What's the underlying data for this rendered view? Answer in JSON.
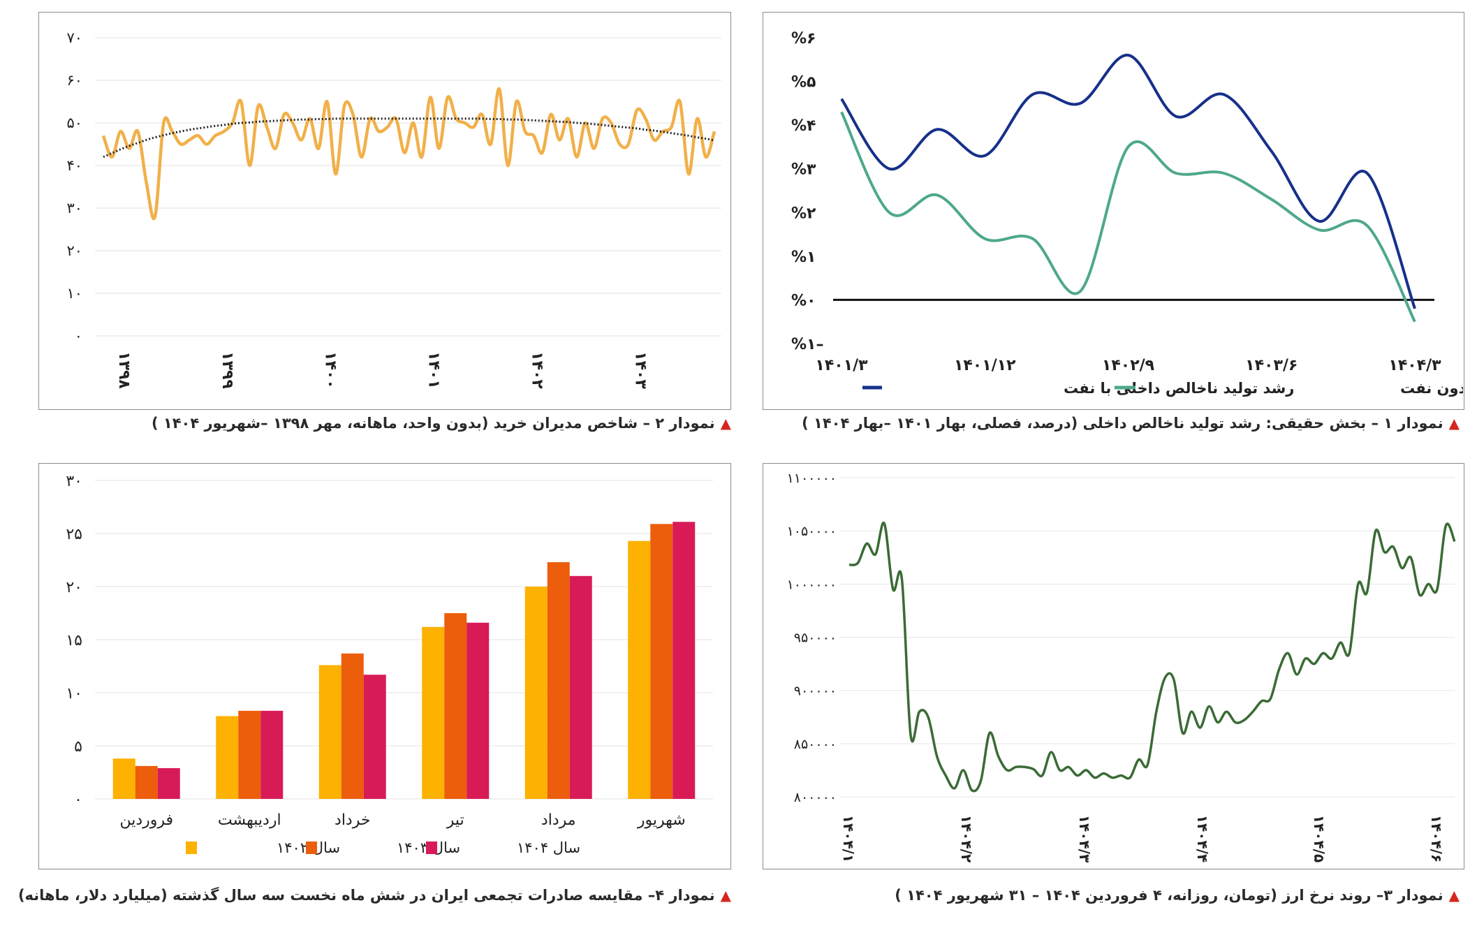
{
  "colors": {
    "red_marker": "#d7261e",
    "c1_oil": "#16308a",
    "c1_nonoil": "#4ea88c",
    "c2_line": "#f1b04a",
    "c2_trend": "#222222",
    "c3_line": "#3a6b35",
    "c4_1402": "#fdb100",
    "c4_1403": "#ec5e0b",
    "c4_1404": "#d81b57"
  },
  "captions": {
    "chart1": "نمودار ۱ – بخش حقیقی: رشد تولید ناخالص داخلی (درصد، فصلی، بهار ۱۴۰۱ –بهار ۱۴۰۴ )",
    "chart2": "نمودار ۲ – شاخص مدیران خرید (بدون واحد، ماهانه، مهر ۱۳۹۸ –شهریور ۱۴۰۴ )",
    "chart3": "نمودار ۳– روند نرخ ارز (تومان، روزانه، ۴ فروردین ۱۴۰۴ – ۳۱ شهریور ۱۴۰۴ )",
    "chart4": "نمودار ۴– مقایسه صادرات تجمعی ایران در شش ماه نخست سه سال گذشته (میلیارد دلار، ماهانه)"
  },
  "chart_data": [
    {
      "id": "chart1",
      "type": "line",
      "ylim": [
        -1,
        6
      ],
      "y_ticks": [
        "%۶",
        "%۵",
        "%۴",
        "%۳",
        "%۲",
        "%۱",
        "%۰",
        "%۱–"
      ],
      "x_tick_labels": [
        "۱۴۰۱/۳",
        "۱۴۰۱/۱۲",
        "۱۴۰۲/۹",
        "۱۴۰۳/۶",
        "۱۴۰۴/۳"
      ],
      "x": [
        "1401/3",
        "1401/6",
        "1401/9",
        "1401/12",
        "1402/3",
        "1402/6",
        "1402/9",
        "1402/12",
        "1403/3",
        "1403/6",
        "1403/9",
        "1403/12",
        "1404/3"
      ],
      "series": [
        {
          "name": "رشد تولید ناخالص داخلی با نفت",
          "values": [
            4.6,
            3.0,
            3.9,
            3.3,
            4.7,
            4.5,
            5.6,
            4.2,
            4.7,
            3.4,
            1.8,
            2.9,
            -0.2
          ]
        },
        {
          "name": "رشد تولید ناخالص داخلی بدون نفت",
          "values": [
            4.3,
            2.0,
            2.4,
            1.4,
            1.4,
            0.2,
            3.5,
            2.9,
            2.9,
            2.3,
            1.6,
            1.7,
            -0.5
          ]
        }
      ],
      "zero_line": true
    },
    {
      "id": "chart2",
      "type": "line",
      "ylim": [
        0,
        70
      ],
      "y_ticks": [
        "۷۰",
        "۶۰",
        "۵۰",
        "۴۰",
        "۳۰",
        "۲۰",
        "۱۰",
        "۰"
      ],
      "x_tick_labels": [
        "۱۳۹۸",
        "۱۳۹۹",
        "۱۴۰۰",
        "۱۴۰۱",
        "۱۴۰۲",
        "۱۴۰۳",
        "۱۴۰۴"
      ],
      "x": [
        "1398/7",
        "1398/8",
        "1398/9",
        "1398/10",
        "1398/11",
        "1398/12",
        "1399/1",
        "1399/2",
        "1399/3",
        "1399/4",
        "1399/5",
        "1399/6",
        "1399/7",
        "1399/8",
        "1399/9",
        "1399/10",
        "1399/11",
        "1399/12",
        "1400/1",
        "1400/2",
        "1400/3",
        "1400/4",
        "1400/5",
        "1400/6",
        "1400/7",
        "1400/8",
        "1400/9",
        "1400/10",
        "1400/11",
        "1400/12",
        "1401/1",
        "1401/2",
        "1401/3",
        "1401/4",
        "1401/5",
        "1401/6",
        "1401/7",
        "1401/8",
        "1401/9",
        "1401/10",
        "1401/11",
        "1401/12",
        "1402/1",
        "1402/2",
        "1402/3",
        "1402/4",
        "1402/5",
        "1402/6",
        "1402/7",
        "1402/8",
        "1402/9",
        "1402/10",
        "1402/11",
        "1402/12",
        "1403/1",
        "1403/2",
        "1403/3",
        "1403/4",
        "1403/5",
        "1403/6",
        "1403/7",
        "1403/8",
        "1403/9",
        "1403/10",
        "1403/11",
        "1403/12",
        "1404/1",
        "1404/2",
        "1404/3",
        "1404/4",
        "1404/5",
        "1404/6"
      ],
      "series": [
        {
          "name": "",
          "values": [
            47,
            42,
            48,
            44,
            48,
            36,
            28,
            50,
            48,
            45,
            46,
            47,
            45,
            47,
            48,
            50,
            55,
            40,
            54,
            49,
            44,
            52,
            50,
            46,
            51,
            44,
            55,
            38,
            54,
            52,
            42,
            51,
            48,
            49,
            51,
            43,
            50,
            42,
            56,
            44,
            56,
            51,
            50,
            49,
            52,
            45,
            58,
            40,
            55,
            48,
            47,
            43,
            52,
            46,
            51,
            42,
            50,
            44,
            51,
            50,
            45,
            45,
            53,
            51,
            46,
            48,
            49,
            55,
            38,
            51,
            42,
            48
          ]
        },
        {
          "name": "",
          "values": [
            42,
            42.9,
            43.8,
            44.6,
            45.3,
            46,
            46.6,
            47.1,
            47.6,
            48,
            48.4,
            48.7,
            49,
            49.3,
            49.5,
            49.8,
            50,
            50.1,
            50.3,
            50.4,
            50.5,
            50.6,
            50.7,
            50.8,
            50.8,
            50.9,
            50.9,
            51,
            51,
            51,
            51,
            51,
            51,
            51,
            51,
            51,
            51,
            51,
            51,
            51,
            51,
            51,
            51,
            51,
            51,
            50.9,
            50.9,
            50.8,
            50.8,
            50.7,
            50.6,
            50.5,
            50.4,
            50.3,
            50.2,
            50,
            49.9,
            49.7,
            49.5,
            49.3,
            49.1,
            48.9,
            48.7,
            48.4,
            48.2,
            47.9,
            47.6,
            47.3,
            47,
            46.6,
            46.3,
            45.9
          ]
        }
      ],
      "trendline": "dotted"
    },
    {
      "id": "chart3",
      "type": "line",
      "ylim": [
        800000,
        1100000
      ],
      "y_ticks": [
        "۱۱۰۰۰۰۰",
        "۱۰۵۰۰۰۰",
        "۱۰۰۰۰۰۰",
        "۹۵۰۰۰۰",
        "۹۰۰۰۰۰",
        "۸۵۰۰۰۰",
        "۸۰۰۰۰۰"
      ],
      "x_tick_labels": [
        "۱۴۰۴/۱",
        "۱۴۰۴/۲",
        "۱۴۰۴/۳",
        "۱۴۰۴/۴",
        "۱۴۰۴/۵",
        "۱۴۰۴/۶"
      ],
      "series": [
        {
          "name": "",
          "values": [
            1018000,
            1020000,
            1038000,
            1028000,
            1057000,
            995000,
            1005000,
            858000,
            880000,
            875000,
            838000,
            820000,
            808000,
            825000,
            806000,
            815000,
            860000,
            838000,
            825000,
            828000,
            828000,
            826000,
            820000,
            842000,
            825000,
            828000,
            820000,
            825000,
            818000,
            822000,
            818000,
            820000,
            818000,
            835000,
            830000,
            880000,
            912000,
            910000,
            860000,
            880000,
            865000,
            885000,
            870000,
            880000,
            870000,
            872000,
            880000,
            890000,
            892000,
            920000,
            935000,
            915000,
            930000,
            925000,
            935000,
            930000,
            945000,
            935000,
            1000000,
            992000,
            1050000,
            1030000,
            1035000,
            1015000,
            1025000,
            990000,
            1000000,
            995000,
            1055000,
            1040000
          ]
        }
      ]
    },
    {
      "id": "chart4",
      "type": "bar",
      "ylim": [
        0,
        30
      ],
      "y_ticks": [
        "۳۰",
        "۲۵",
        "۲۰",
        "۱۵",
        "۱۰",
        "۵",
        "۰"
      ],
      "categories": [
        "فروردین",
        "اردیبهشت",
        "خرداد",
        "تیر",
        "مرداد",
        "شهریور"
      ],
      "series": [
        {
          "name": "سال ۱۴۰۲",
          "values": [
            3.8,
            7.8,
            12.6,
            16.2,
            20.0,
            24.3
          ]
        },
        {
          "name": "سال ۱۴۰۳",
          "values": [
            3.1,
            8.3,
            13.7,
            17.5,
            22.3,
            25.9
          ]
        },
        {
          "name": "سال ۱۴۰۴",
          "values": [
            2.9,
            8.3,
            11.7,
            16.6,
            21.0,
            26.1
          ]
        }
      ]
    }
  ]
}
